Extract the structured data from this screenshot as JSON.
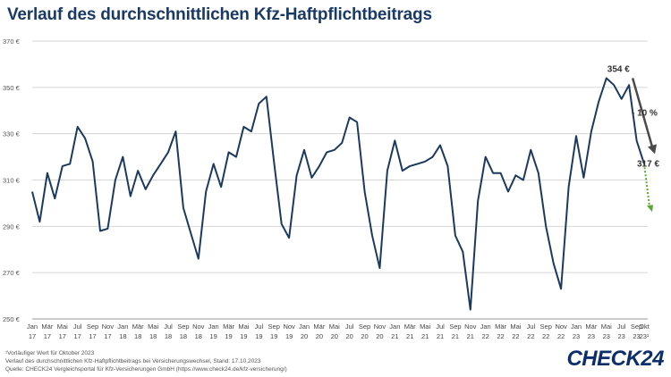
{
  "title": "Verlauf des durchschnittlichen Kfz-Haftpflichtbeitrags",
  "footnotes": [
    "¹Vorläufiger Wert für Oktober 2023",
    "Verlauf des durchschnittlichen Kfz-Haftpflichtbeitrags bei Versicherungswechsel, Stand: 17.10.2023",
    "Quelle: CHECK24 Vergleichsportal für Kfz-Versicherungen GmbH (https://www.check24.de/kfz-versicherung/)"
  ],
  "logo_text": "CHECK24",
  "chart_data": {
    "type": "line",
    "title": "Verlauf des durchschnittlichen Kfz-Haftpflichtbeitrags",
    "ylim": [
      250,
      370
    ],
    "yticks": [
      250,
      270,
      290,
      310,
      330,
      350,
      370
    ],
    "ytick_labels": [
      "250 €",
      "270 €",
      "290 €",
      "310 €",
      "330 €",
      "350 €",
      "370 €"
    ],
    "grid": "horizontal",
    "x": [
      "Jan 17",
      "Feb 17",
      "Mär 17",
      "Apr 17",
      "Mai 17",
      "Jun 17",
      "Jul 17",
      "Aug 17",
      "Sep 17",
      "Okt 17",
      "Nov 17",
      "Dez 17",
      "Jan 18",
      "Feb 18",
      "Mär 18",
      "Apr 18",
      "Mai 18",
      "Jun 18",
      "Jul 18",
      "Aug 18",
      "Sep 18",
      "Okt 18",
      "Nov 18",
      "Dez 18",
      "Jan 19",
      "Feb 19",
      "Mär 19",
      "Apr 19",
      "Mai 19",
      "Jun 19",
      "Jul 19",
      "Aug 19",
      "Sep 19",
      "Okt 19",
      "Nov 19",
      "Dez 19",
      "Jan 20",
      "Feb 20",
      "Mär 20",
      "Apr 20",
      "Mai 20",
      "Jun 20",
      "Jul 20",
      "Aug 20",
      "Sep 20",
      "Okt 20",
      "Nov 20",
      "Dez 20",
      "Jan 21",
      "Feb 21",
      "Mär 21",
      "Apr 21",
      "Mai 21",
      "Jun 21",
      "Jul 21",
      "Aug 21",
      "Sep 21",
      "Okt 21",
      "Nov 21",
      "Dez 21",
      "Jan 22",
      "Feb 22",
      "Mär 22",
      "Apr 22",
      "Mai 22",
      "Jun 22",
      "Jul 22",
      "Aug 22",
      "Sep 22",
      "Okt 22",
      "Nov 22",
      "Dez 22",
      "Jan 23",
      "Feb 23",
      "Mär 23",
      "Apr 23",
      "Mai 23",
      "Jun 23",
      "Jul 23",
      "Aug 23",
      "Sep 23",
      "Okt 23"
    ],
    "xtick_labels": [
      [
        "Jan",
        "17"
      ],
      [
        "Mär",
        "17"
      ],
      [
        "Mai",
        "17"
      ],
      [
        "Jul",
        "17"
      ],
      [
        "Sep",
        "17"
      ],
      [
        "Nov",
        "17"
      ],
      [
        "Jan",
        "18"
      ],
      [
        "Mär",
        "18"
      ],
      [
        "Mai",
        "18"
      ],
      [
        "Jul",
        "18"
      ],
      [
        "Sep",
        "18"
      ],
      [
        "Nov",
        "18"
      ],
      [
        "Jan",
        "19"
      ],
      [
        "Mär",
        "19"
      ],
      [
        "Mai",
        "19"
      ],
      [
        "Jul",
        "19"
      ],
      [
        "Sep",
        "19"
      ],
      [
        "Nov",
        "19"
      ],
      [
        "Jan",
        "20"
      ],
      [
        "Mär",
        "20"
      ],
      [
        "Mai",
        "20"
      ],
      [
        "Jul",
        "20"
      ],
      [
        "Sep",
        "20"
      ],
      [
        "Nov",
        "20"
      ],
      [
        "Jan",
        "21"
      ],
      [
        "Mär",
        "21"
      ],
      [
        "Mai",
        "21"
      ],
      [
        "Jul",
        "21"
      ],
      [
        "Sep",
        "21"
      ],
      [
        "Nov",
        "21"
      ],
      [
        "Jan",
        "22"
      ],
      [
        "Mär",
        "22"
      ],
      [
        "Mai",
        "22"
      ],
      [
        "Jul",
        "22"
      ],
      [
        "Sep",
        "22"
      ],
      [
        "Nov",
        "22"
      ],
      [
        "Jan",
        "23"
      ],
      [
        "Mär",
        "23"
      ],
      [
        "Mai",
        "23"
      ],
      [
        "Jul",
        "23"
      ],
      [
        "Sep",
        "23"
      ],
      [
        "Okt",
        "23¹"
      ]
    ],
    "series": [
      {
        "color": "#1c3a5e",
        "values": [
          305,
          292,
          313,
          302,
          316,
          317,
          333,
          328,
          318,
          288,
          289,
          310,
          320,
          303,
          314,
          306,
          312,
          317,
          322,
          331,
          298,
          287,
          276,
          305,
          317,
          307,
          322,
          320,
          333,
          331,
          343,
          346,
          318,
          291,
          285,
          312,
          323,
          311,
          316,
          322,
          323,
          326,
          337,
          335,
          305,
          286,
          272,
          314,
          327,
          314,
          316,
          317,
          318,
          320,
          325,
          316,
          286,
          279,
          254,
          301,
          320,
          313,
          313,
          305,
          312,
          310,
          323,
          313,
          290,
          274,
          263,
          307,
          329,
          311,
          331,
          344,
          354,
          351,
          345,
          351,
          327,
          317
        ]
      }
    ],
    "projection": {
      "from": "Okt 23",
      "from_value": 317,
      "to_value": 297,
      "color": "#5aa832",
      "style": "dotted"
    },
    "annotations": {
      "peak_label": "354 €",
      "current_label": "317 €",
      "change_label": "- 10 %",
      "arrow_color": "#4a4a4a"
    }
  }
}
